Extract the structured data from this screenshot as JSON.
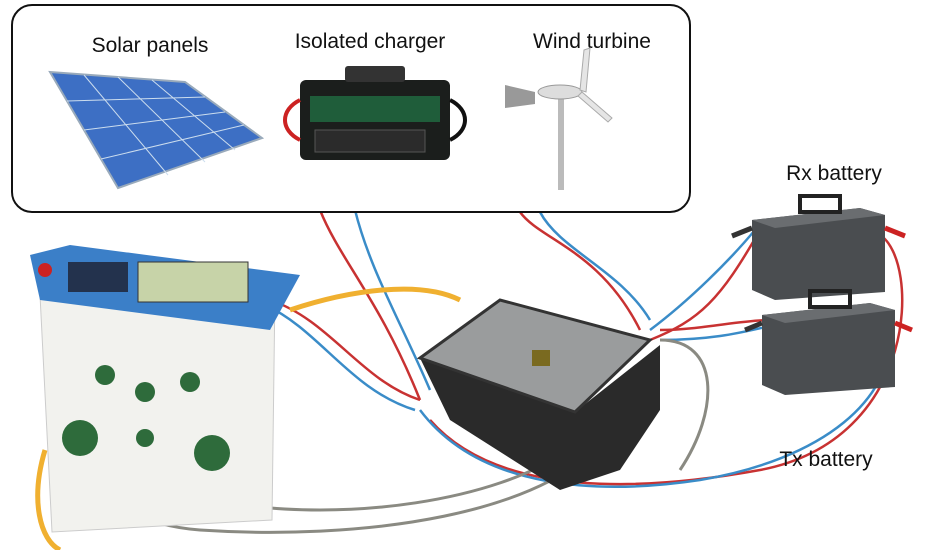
{
  "labels": {
    "solar_panels": "Solar panels",
    "isolated_charger": "Isolated charger",
    "wind_turbine": "Wind turbine",
    "rx_battery": "Rx battery",
    "tx_battery": "Tx battery"
  }
}
